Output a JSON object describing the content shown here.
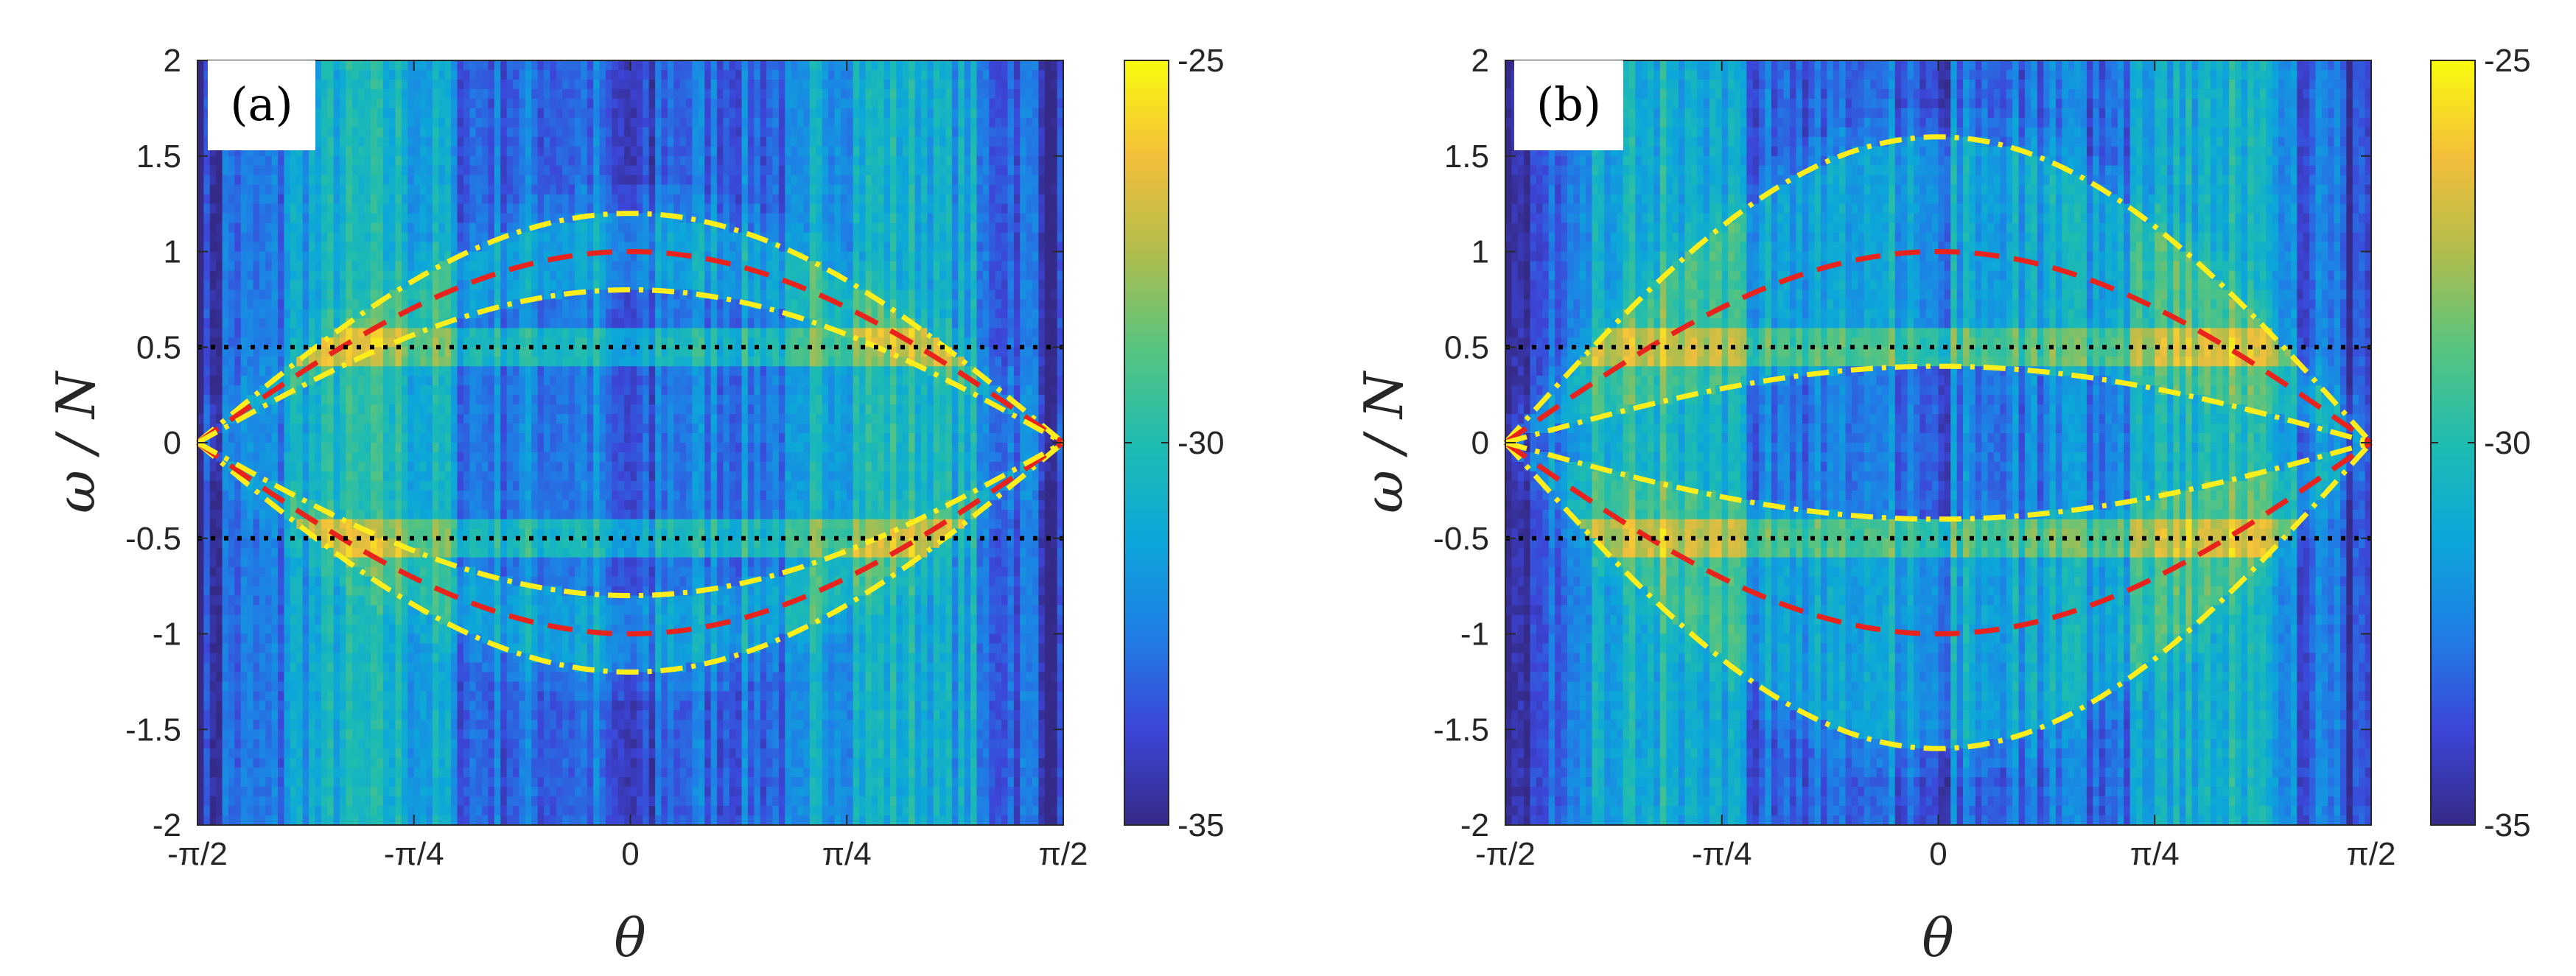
{
  "figure": {
    "colormap_name": "parula",
    "colormap_stops": [
      "#352a87",
      "#3c45d8",
      "#1f7fe6",
      "#0ca7da",
      "#1fbcb0",
      "#58c47f",
      "#b1bd4c",
      "#f4bf3a",
      "#f9fb0e"
    ],
    "colors": {
      "yellow_dashdot": "#ffee1c",
      "red_dashed": "#e8231d",
      "black_dotted": "#000000",
      "axis": "#262626"
    }
  },
  "chart_data": [
    {
      "type": "heatmap",
      "panel_label": "(a)",
      "xlabel": "θ",
      "ylabel": "ω / N",
      "xlim": [
        -1.5708,
        1.5708
      ],
      "ylim": [
        -2,
        2
      ],
      "xticks": [
        {
          "value": -1.5708,
          "label": "-π/2"
        },
        {
          "value": -0.7854,
          "label": "-π/4"
        },
        {
          "value": 0,
          "label": "0"
        },
        {
          "value": 0.7854,
          "label": "π/4"
        },
        {
          "value": 1.5708,
          "label": "π/2"
        }
      ],
      "yticks": [
        {
          "value": 2,
          "label": "2"
        },
        {
          "value": 1.5,
          "label": "1.5"
        },
        {
          "value": 1,
          "label": "1"
        },
        {
          "value": 0.5,
          "label": "0.5"
        },
        {
          "value": 0,
          "label": "0"
        },
        {
          "value": -0.5,
          "label": "-0.5"
        },
        {
          "value": -1,
          "label": "-1"
        },
        {
          "value": -1.5,
          "label": "-1.5"
        },
        {
          "value": -2,
          "label": "-2"
        }
      ],
      "colorbar": {
        "min": -35,
        "max": -25,
        "ticks": [
          {
            "value": -25,
            "label": "-25"
          },
          {
            "value": -30,
            "label": "-30"
          },
          {
            "value": -35,
            "label": "-35"
          }
        ]
      },
      "series": [
        {
          "name": "upper envelope (dash-dot)",
          "style": "dashdot",
          "color": "#ffee1c",
          "function": "1.2cos(θ)",
          "amplitude": 1.2
        },
        {
          "name": "ω = N cos θ (dashed)",
          "style": "dashed",
          "color": "#e8231d",
          "function": "1.0cos(θ)",
          "amplitude": 1.0
        },
        {
          "name": "lower envelope (dash-dot)",
          "style": "dashdot",
          "color": "#ffee1c",
          "function": "0.8cos(θ)",
          "amplitude": 0.8
        },
        {
          "name": "ω/N = ±0.5 (dotted)",
          "style": "dotted",
          "color": "#000000",
          "y_values": [
            0.5,
            -0.5
          ]
        }
      ],
      "heatmap": {
        "hot_band_theta_abs": [
          0.65,
          1.25
        ],
        "peak_band_theta_abs": [
          0.8,
          1.1
        ],
        "dark_center_theta_abs": 0.1
      }
    },
    {
      "type": "heatmap",
      "panel_label": "(b)",
      "xlabel": "θ",
      "ylabel": "ω / N",
      "xlim": [
        -1.5708,
        1.5708
      ],
      "ylim": [
        -2,
        2
      ],
      "xticks": [
        {
          "value": -1.5708,
          "label": "-π/2"
        },
        {
          "value": -0.7854,
          "label": "-π/4"
        },
        {
          "value": 0,
          "label": "0"
        },
        {
          "value": 0.7854,
          "label": "π/4"
        },
        {
          "value": 1.5708,
          "label": "π/2"
        }
      ],
      "yticks": [
        {
          "value": 2,
          "label": "2"
        },
        {
          "value": 1.5,
          "label": "1.5"
        },
        {
          "value": 1,
          "label": "1"
        },
        {
          "value": 0.5,
          "label": "0.5"
        },
        {
          "value": 0,
          "label": "0"
        },
        {
          "value": -0.5,
          "label": "-0.5"
        },
        {
          "value": -1,
          "label": "-1"
        },
        {
          "value": -1.5,
          "label": "-1.5"
        },
        {
          "value": -2,
          "label": "-2"
        }
      ],
      "colorbar": {
        "min": -35,
        "max": -25,
        "ticks": [
          {
            "value": -25,
            "label": "-25"
          },
          {
            "value": -30,
            "label": "-30"
          },
          {
            "value": -35,
            "label": "-35"
          }
        ]
      },
      "series": [
        {
          "name": "upper envelope (dash-dot)",
          "style": "dashdot",
          "color": "#ffee1c",
          "function": "1.6cos(θ)",
          "amplitude": 1.6
        },
        {
          "name": "ω = N cos θ (dashed)",
          "style": "dashed",
          "color": "#e8231d",
          "function": "1.0cos(θ)",
          "amplitude": 1.0
        },
        {
          "name": "lower envelope (dash-dot)",
          "style": "dashdot",
          "color": "#ffee1c",
          "function": "0.4cos(θ)",
          "amplitude": 0.4
        },
        {
          "name": "ω/N = ±0.5 (dotted)",
          "style": "dotted",
          "color": "#000000",
          "y_values": [
            0.5,
            -0.5
          ]
        }
      ],
      "heatmap": {
        "hot_band_theta_abs": [
          0.7,
          1.3
        ],
        "peak_band_theta_abs": [
          0.85,
          1.2
        ],
        "dark_center_theta_abs": 0.05
      }
    }
  ]
}
